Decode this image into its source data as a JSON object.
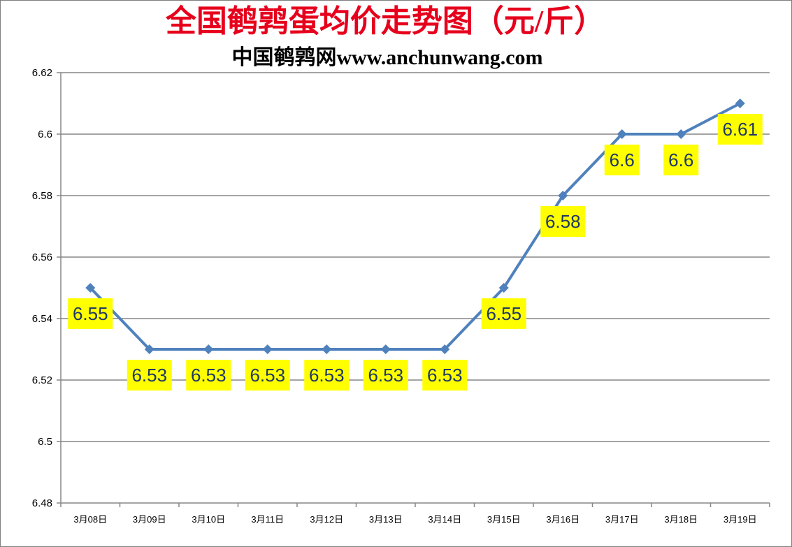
{
  "title": "全国鹌鹑蛋均价走势图（元/斤）",
  "subtitle": "中国鹌鹑网www.anchunwang.com",
  "chart_data": {
    "type": "line",
    "title": "全国鹌鹑蛋均价走势图（元/斤）",
    "subtitle": "中国鹌鹑网www.anchunwang.com",
    "xlabel": "",
    "ylabel": "",
    "categories": [
      "3月08日",
      "3月09日",
      "3月10日",
      "3月11日",
      "3月12日",
      "3月13日",
      "3月14日",
      "3月15日",
      "3月16日",
      "3月17日",
      "3月18日",
      "3月19日"
    ],
    "series": [
      {
        "values": [
          6.55,
          6.53,
          6.53,
          6.53,
          6.53,
          6.53,
          6.53,
          6.55,
          6.58,
          6.6,
          6.6,
          6.61
        ],
        "data_labels": [
          "6.55",
          "6.53",
          "6.53",
          "6.53",
          "6.53",
          "6.53",
          "6.53",
          "6.55",
          "6.58",
          "6.6",
          "6.6",
          "6.61"
        ]
      }
    ],
    "ylim": [
      6.48,
      6.62
    ],
    "y_ticks": [
      "6.48",
      "6.5",
      "6.52",
      "6.54",
      "6.56",
      "6.58",
      "6.6",
      "6.62"
    ],
    "grid": true,
    "legend": "none",
    "colors": {
      "line": "#4f81bd",
      "data_label_bg": "#ffff00",
      "data_label_text": "#1f3864",
      "title": "#e6001c",
      "grid": "#868686"
    }
  }
}
